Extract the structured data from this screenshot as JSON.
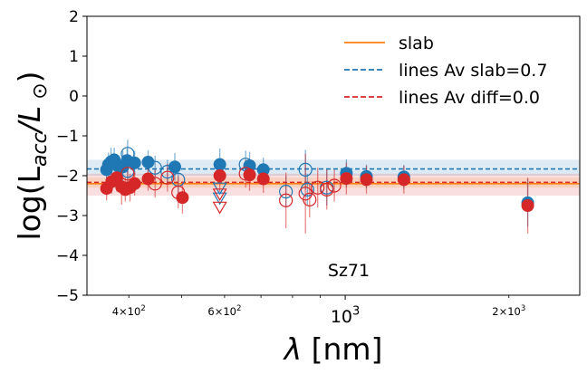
{
  "chart_data": {
    "type": "scatter",
    "title": "",
    "xlabel": "λ [nm]",
    "ylabel": "log(L_acc/L_⊙)",
    "xscale": "log",
    "xlim": [
      335,
      2700
    ],
    "ylim": [
      -5,
      2
    ],
    "yticks": [
      2,
      1,
      0,
      -1,
      -2,
      -3,
      -4,
      -5
    ],
    "ytick_labels": [
      "2",
      "1",
      "0",
      "−1",
      "−2",
      "−3",
      "−4",
      "−5"
    ],
    "xticks_major": [
      1000
    ],
    "xtick_major_labels": [
      "10^3"
    ],
    "xticks_minor_labeled": [
      {
        "value": 400,
        "label": "4×10^2"
      },
      {
        "value": 600,
        "label": "6×10^2"
      },
      {
        "value": 2000,
        "label": "2×10^3"
      }
    ],
    "xticks_minor": [
      400,
      500,
      600,
      700,
      800,
      900,
      2000
    ],
    "annotation": "Sz71",
    "legend_position": "upper right",
    "legend": [
      {
        "label": "slab",
        "style": "solid",
        "color": "#ff7f0e"
      },
      {
        "label": "lines Av slab=0.7",
        "style": "dashed",
        "color": "#1f77b4"
      },
      {
        "label": "lines Av diff=0.0",
        "style": "dashed",
        "color": "#d62728"
      }
    ],
    "hlines": [
      {
        "name": "lines Av slab=0.7",
        "y": -1.83,
        "band": [
          -2.0,
          -1.6
        ],
        "color": "#1f77b4",
        "style": "dashed"
      },
      {
        "name": "lines Av diff=0.0",
        "y": -2.17,
        "band": [
          -2.5,
          -1.95
        ],
        "color": "#d62728",
        "style": "dashed"
      },
      {
        "name": "slab",
        "y": -2.2,
        "band": [
          -2.3,
          -2.05
        ],
        "color": "#ff7f0e",
        "style": "solid"
      }
    ],
    "series": [
      {
        "color": "#1f77b4",
        "filled": [
          {
            "x": 364,
            "y": -1.85,
            "err": 0.25
          },
          {
            "x": 367,
            "y": -1.72,
            "err": 0.3
          },
          {
            "x": 371,
            "y": -1.65,
            "err": 0.35
          },
          {
            "x": 376,
            "y": -1.6,
            "err": 0.3
          },
          {
            "x": 382,
            "y": -1.75,
            "err": 0.25
          },
          {
            "x": 390,
            "y": -1.78,
            "err": 0.4
          },
          {
            "x": 397,
            "y": -1.62,
            "err": 0.3
          },
          {
            "x": 410,
            "y": -1.68,
            "err": 0.3
          },
          {
            "x": 434,
            "y": -1.66,
            "err": 0.3
          },
          {
            "x": 486,
            "y": -1.78,
            "err": 0.35
          },
          {
            "x": 588,
            "y": -1.72,
            "err": 0.4
          },
          {
            "x": 667,
            "y": -1.75,
            "err": 0.35
          },
          {
            "x": 707,
            "y": -1.85,
            "err": 0.3
          },
          {
            "x": 1005,
            "y": -1.94,
            "err": 0.35
          },
          {
            "x": 1094,
            "y": -2.02,
            "err": 0.3
          },
          {
            "x": 1282,
            "y": -2.03,
            "err": 0.3
          },
          {
            "x": 2166,
            "y": -2.68,
            "err": 0.6
          }
        ],
        "open": [
          {
            "x": 398,
            "y": -1.45,
            "err": 0.35
          },
          {
            "x": 398,
            "y": -1.88,
            "err": 0.3
          },
          {
            "x": 447,
            "y": -1.8,
            "err": 0.3
          },
          {
            "x": 471,
            "y": -1.9,
            "err": 0.3
          },
          {
            "x": 493,
            "y": -2.1,
            "err": 0.35
          },
          {
            "x": 656,
            "y": -1.72,
            "err": 0.35
          },
          {
            "x": 778,
            "y": -2.4,
            "err": 0.4
          },
          {
            "x": 845,
            "y": -1.85,
            "err": 0.5
          },
          {
            "x": 852,
            "y": -2.35,
            "err": 0.4
          },
          {
            "x": 925,
            "y": -2.3,
            "err": 0.45
          }
        ],
        "upper_limits": [
          {
            "x": 588,
            "y": -2.3
          },
          {
            "x": 588,
            "y": -2.55
          }
        ]
      },
      {
        "color": "#d62728",
        "filled": [
          {
            "x": 364,
            "y": -2.32,
            "err": 0.3
          },
          {
            "x": 372,
            "y": -2.15,
            "err": 0.3
          },
          {
            "x": 380,
            "y": -2.05,
            "err": 0.35
          },
          {
            "x": 388,
            "y": -2.28,
            "err": 0.45
          },
          {
            "x": 394,
            "y": -2.35,
            "err": 0.3
          },
          {
            "x": 402,
            "y": -2.3,
            "err": 0.35
          },
          {
            "x": 410,
            "y": -2.2,
            "err": 0.3
          },
          {
            "x": 434,
            "y": -2.08,
            "err": 0.3
          },
          {
            "x": 502,
            "y": -2.55,
            "err": 0.4
          },
          {
            "x": 588,
            "y": -2.0,
            "err": 0.4
          },
          {
            "x": 667,
            "y": -1.98,
            "err": 0.4
          },
          {
            "x": 707,
            "y": -2.08,
            "err": 0.35
          },
          {
            "x": 1005,
            "y": -2.07,
            "err": 0.4
          },
          {
            "x": 1094,
            "y": -2.1,
            "err": 0.35
          },
          {
            "x": 1282,
            "y": -2.1,
            "err": 0.35
          },
          {
            "x": 2166,
            "y": -2.75,
            "err": 0.7
          }
        ],
        "open": [
          {
            "x": 398,
            "y": -1.95,
            "err": 0.3
          },
          {
            "x": 447,
            "y": -2.2,
            "err": 0.35
          },
          {
            "x": 471,
            "y": -2.05,
            "err": 0.35
          },
          {
            "x": 493,
            "y": -2.42,
            "err": 0.4
          },
          {
            "x": 656,
            "y": -1.95,
            "err": 0.35
          },
          {
            "x": 778,
            "y": -2.62,
            "err": 0.7
          },
          {
            "x": 845,
            "y": -2.45,
            "err": 1.0
          },
          {
            "x": 860,
            "y": -2.6,
            "err": 0.45
          },
          {
            "x": 890,
            "y": -2.3,
            "err": 0.5
          },
          {
            "x": 925,
            "y": -2.35,
            "err": 0.5
          },
          {
            "x": 955,
            "y": -2.25,
            "err": 0.4
          }
        ],
        "upper_limits": [
          {
            "x": 588,
            "y": -2.45
          },
          {
            "x": 588,
            "y": -2.78
          }
        ]
      }
    ]
  }
}
